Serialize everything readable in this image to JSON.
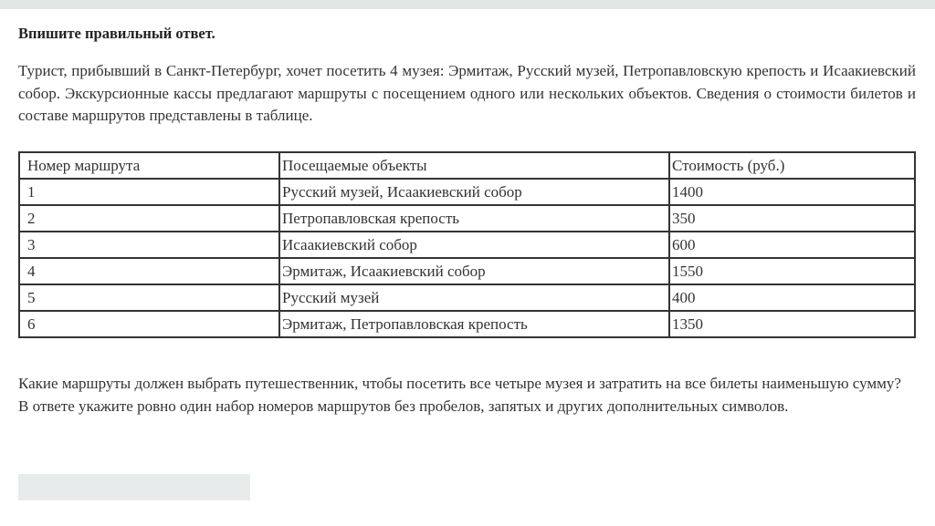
{
  "title": "Впишите правильный ответ.",
  "intro": "Турист, прибывший в Санкт-Петербург, хочет посетить 4 музея: Эрмитаж, Русский музей, Петропавловскую крепость и Исаакиевский собор. Экскурсионные кассы предлагают маршруты с посещением одного или нескольких объектов. Сведения о стоимости билетов и составе маршрутов представлены в таблице.",
  "table": {
    "headers": [
      "Номер маршрута",
      "Посещаемые объекты",
      "Стоимость (руб.)"
    ],
    "rows": [
      [
        "1",
        "Русский музей, Исаакиевский собор",
        "1400"
      ],
      [
        "2",
        "Петропавловская крепость",
        "350"
      ],
      [
        "3",
        "Исаакиевский собор",
        "600"
      ],
      [
        "4",
        "Эрмитаж, Исаакиевский собор",
        "1550"
      ],
      [
        "5",
        "Русский музей",
        "400"
      ],
      [
        "6",
        "Эрмитаж, Петропавловская крепость",
        "1350"
      ]
    ]
  },
  "question": "Какие маршруты должен выбрать путешественник, чтобы посетить все четыре музея и затратить на все билеты наименьшую сумму?",
  "instruction": "В ответе укажите ровно один набор номеров маршрутов без пробелов, запятых и других дополнительных символов.",
  "answer": {
    "value": ""
  }
}
